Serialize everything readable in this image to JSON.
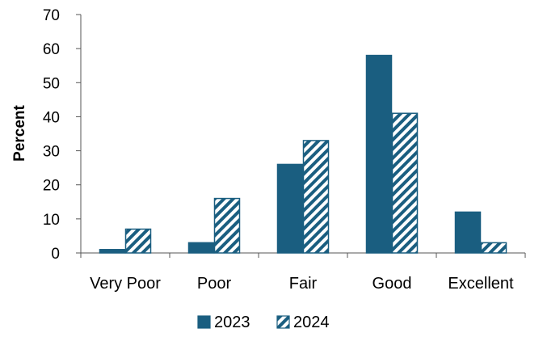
{
  "chart_data": {
    "type": "bar",
    "title": "",
    "xlabel": "",
    "ylabel": "Percent",
    "categories": [
      "Very Poor",
      "Poor",
      "Fair",
      "Good",
      "Excellent"
    ],
    "ylim": [
      0,
      70
    ],
    "yticks": [
      0,
      10,
      20,
      30,
      40,
      50,
      60,
      70
    ],
    "grid": false,
    "legend_position": "bottom",
    "series": [
      {
        "name": "2023",
        "values": [
          1,
          3,
          26,
          58,
          12
        ],
        "color": "#1a5e80",
        "fill": "solid"
      },
      {
        "name": "2024",
        "values": [
          7,
          16,
          33,
          41,
          3
        ],
        "color": "#1a5e80",
        "fill": "diagonal-hatch"
      }
    ]
  }
}
